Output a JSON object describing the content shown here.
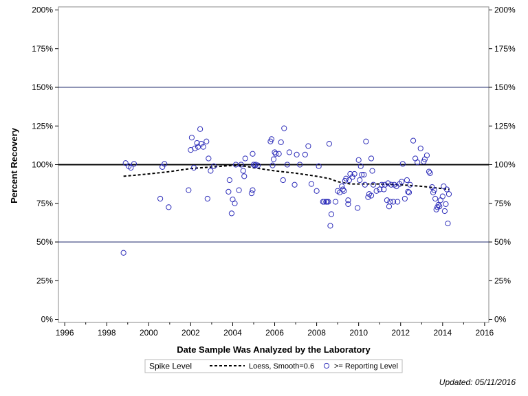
{
  "chart_data": {
    "type": "scatter",
    "title": "",
    "xlabel": "Date Sample Was Analyzed by the Laboratory",
    "ylabel": "Percent Recovery",
    "xlim": [
      1995.7,
      2016.2
    ],
    "ylim": [
      -2,
      202
    ],
    "x_ticks": [
      1996,
      1998,
      2000,
      2002,
      2004,
      2006,
      2008,
      2010,
      2012,
      2014,
      2016
    ],
    "y_ticks": [
      0,
      25,
      50,
      75,
      100,
      125,
      150,
      175,
      200
    ],
    "y_tick_labels": [
      "0%",
      "25%",
      "50%",
      "75%",
      "100%",
      "125%",
      "150%",
      "175%",
      "200%"
    ],
    "reference_lines": [
      {
        "value": 100,
        "style": "bold"
      },
      {
        "value": 50,
        "style": "thin"
      },
      {
        "value": 150,
        "style": "thin"
      }
    ],
    "grid": false,
    "legend_position": "bottom",
    "legend_title": "Spike Level",
    "colors": {
      "points": "#2a2ab8",
      "loess": "#000000",
      "ref_line": "#000000",
      "thin_line": "#1f2a6b"
    },
    "series": [
      {
        "name": ">= Reporting Level",
        "kind": "scatter",
        "points": [
          [
            1998.8,
            43
          ],
          [
            1998.9,
            101
          ],
          [
            1999.05,
            99
          ],
          [
            1999.15,
            98
          ],
          [
            1999.3,
            100.5
          ],
          [
            2000.55,
            78
          ],
          [
            2000.65,
            98.5
          ],
          [
            2000.75,
            100.5
          ],
          [
            2000.95,
            72.5
          ],
          [
            2001.9,
            83.5
          ],
          [
            2002.0,
            109.5
          ],
          [
            2002.05,
            117.5
          ],
          [
            2002.15,
            98
          ],
          [
            2002.2,
            110.5
          ],
          [
            2002.3,
            114
          ],
          [
            2002.35,
            111.5
          ],
          [
            2002.45,
            123
          ],
          [
            2002.5,
            113.5
          ],
          [
            2002.6,
            111.5
          ],
          [
            2002.75,
            115
          ],
          [
            2002.8,
            78
          ],
          [
            2002.85,
            104
          ],
          [
            2002.95,
            96
          ],
          [
            2003.1,
            99
          ],
          [
            2003.8,
            82.5
          ],
          [
            2003.85,
            90
          ],
          [
            2003.95,
            68.5
          ],
          [
            2004.0,
            77.5
          ],
          [
            2004.1,
            75
          ],
          [
            2004.15,
            100
          ],
          [
            2004.3,
            83.5
          ],
          [
            2004.4,
            100
          ],
          [
            2004.5,
            96
          ],
          [
            2004.55,
            92.5
          ],
          [
            2004.6,
            104
          ],
          [
            2004.9,
            81.5
          ],
          [
            2004.95,
            83.5
          ],
          [
            2004.95,
            107
          ],
          [
            2005.0,
            100
          ],
          [
            2005.05,
            99.5
          ],
          [
            2005.1,
            100
          ],
          [
            2005.2,
            99.5
          ],
          [
            2005.8,
            115
          ],
          [
            2005.85,
            116.5
          ],
          [
            2005.9,
            99.5
          ],
          [
            2005.95,
            103.5
          ],
          [
            2006.0,
            108
          ],
          [
            2006.05,
            107
          ],
          [
            2006.2,
            107
          ],
          [
            2006.3,
            114.5
          ],
          [
            2006.4,
            90
          ],
          [
            2006.45,
            123.5
          ],
          [
            2006.6,
            100
          ],
          [
            2006.7,
            108
          ],
          [
            2006.95,
            87
          ],
          [
            2007.05,
            106.5
          ],
          [
            2007.2,
            100
          ],
          [
            2007.45,
            106.5
          ],
          [
            2007.6,
            112
          ],
          [
            2007.75,
            87.5
          ],
          [
            2008.0,
            83
          ],
          [
            2008.1,
            99
          ],
          [
            2008.3,
            76
          ],
          [
            2008.35,
            76
          ],
          [
            2008.45,
            76
          ],
          [
            2008.5,
            76
          ],
          [
            2008.55,
            76
          ],
          [
            2008.6,
            113.5
          ],
          [
            2008.65,
            60.5
          ],
          [
            2008.7,
            68
          ],
          [
            2008.9,
            76
          ],
          [
            2009.0,
            83
          ],
          [
            2009.1,
            82
          ],
          [
            2009.2,
            86
          ],
          [
            2009.25,
            84
          ],
          [
            2009.3,
            83
          ],
          [
            2009.35,
            89.5
          ],
          [
            2009.4,
            91
          ],
          [
            2009.5,
            77
          ],
          [
            2009.5,
            74.5
          ],
          [
            2009.55,
            90
          ],
          [
            2009.6,
            94
          ],
          [
            2009.7,
            92
          ],
          [
            2009.8,
            94
          ],
          [
            2009.95,
            72
          ],
          [
            2010.0,
            103
          ],
          [
            2010.05,
            90
          ],
          [
            2010.1,
            99
          ],
          [
            2010.15,
            93.5
          ],
          [
            2010.25,
            93.5
          ],
          [
            2010.3,
            87
          ],
          [
            2010.35,
            115
          ],
          [
            2010.45,
            79
          ],
          [
            2010.5,
            81
          ],
          [
            2010.6,
            80
          ],
          [
            2010.6,
            104
          ],
          [
            2010.65,
            96
          ],
          [
            2010.7,
            87
          ],
          [
            2010.85,
            83
          ],
          [
            2011.0,
            84
          ],
          [
            2011.1,
            87
          ],
          [
            2011.2,
            84
          ],
          [
            2011.25,
            87
          ],
          [
            2011.35,
            77
          ],
          [
            2011.4,
            88
          ],
          [
            2011.45,
            73
          ],
          [
            2011.5,
            76
          ],
          [
            2011.55,
            87
          ],
          [
            2011.65,
            76
          ],
          [
            2011.7,
            87
          ],
          [
            2011.8,
            86
          ],
          [
            2011.85,
            76
          ],
          [
            2011.95,
            87.5
          ],
          [
            2012.05,
            89
          ],
          [
            2012.1,
            100.5
          ],
          [
            2012.2,
            78
          ],
          [
            2012.3,
            90
          ],
          [
            2012.35,
            82.5
          ],
          [
            2012.4,
            82
          ],
          [
            2012.45,
            87
          ],
          [
            2012.6,
            115.5
          ],
          [
            2012.7,
            104
          ],
          [
            2012.8,
            101.5
          ],
          [
            2012.95,
            110.5
          ],
          [
            2013.1,
            102
          ],
          [
            2013.15,
            103.5
          ],
          [
            2013.25,
            106
          ],
          [
            2013.35,
            95.5
          ],
          [
            2013.4,
            94.5
          ],
          [
            2013.5,
            85.5
          ],
          [
            2013.55,
            82
          ],
          [
            2013.6,
            83.5
          ],
          [
            2013.65,
            78
          ],
          [
            2013.7,
            71
          ],
          [
            2013.75,
            72.5
          ],
          [
            2013.8,
            74
          ],
          [
            2013.85,
            73
          ],
          [
            2013.9,
            77
          ],
          [
            2014.0,
            79.5
          ],
          [
            2014.05,
            86
          ],
          [
            2014.1,
            70
          ],
          [
            2014.15,
            74.5
          ],
          [
            2014.2,
            84
          ],
          [
            2014.25,
            62
          ],
          [
            2014.3,
            81
          ]
        ]
      },
      {
        "name": "Loess, Smooth=0.6",
        "kind": "line",
        "style": "dashed",
        "points": [
          [
            1998.8,
            92.5
          ],
          [
            2000.0,
            94
          ],
          [
            2001.0,
            95.5
          ],
          [
            2002.0,
            97.5
          ],
          [
            2003.0,
            98.5
          ],
          [
            2004.0,
            99.5
          ],
          [
            2004.6,
            99
          ],
          [
            2005.0,
            98
          ],
          [
            2006.0,
            96
          ],
          [
            2007.0,
            94.5
          ],
          [
            2008.0,
            92.5
          ],
          [
            2008.6,
            91
          ],
          [
            2009.0,
            89
          ],
          [
            2009.6,
            87.5
          ],
          [
            2010.0,
            87.5
          ],
          [
            2010.5,
            87.5
          ],
          [
            2011.0,
            87.5
          ],
          [
            2012.0,
            87
          ],
          [
            2013.0,
            86
          ],
          [
            2014.0,
            84.5
          ],
          [
            2014.3,
            84
          ]
        ]
      }
    ]
  },
  "footnote": "Updated: 05/11/2016"
}
